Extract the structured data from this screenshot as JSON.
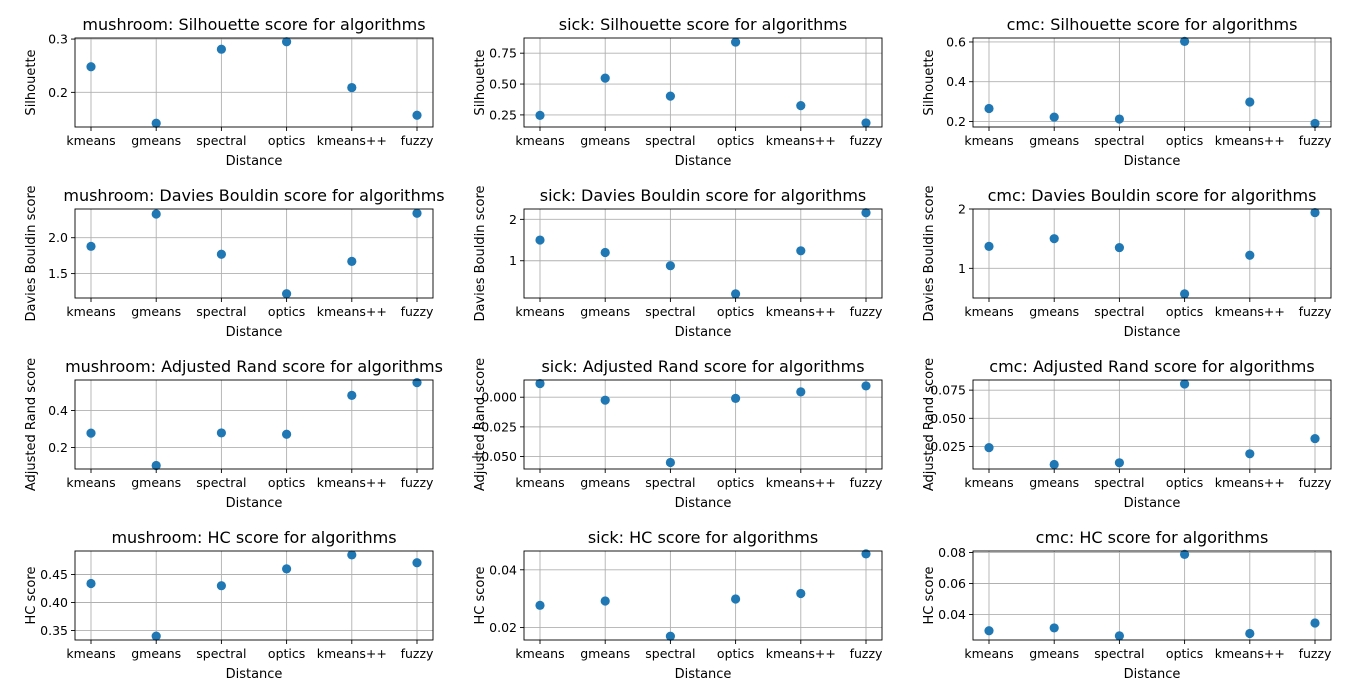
{
  "figure": {
    "background": "#ffffff",
    "marker_color": "#1f77b4",
    "grid": true
  },
  "chart_data": [
    {
      "type": "scatter",
      "title": "mushroom: Silhouette score for algorithms",
      "xlabel": "Distance",
      "ylabel": "Silhouette",
      "categories": [
        "kmeans",
        "gmeans",
        "spectral",
        "optics",
        "kmeans++",
        "fuzzy"
      ],
      "values": [
        0.248,
        0.142,
        0.281,
        0.295,
        0.209,
        0.157
      ],
      "ylim": [
        0.135,
        0.302
      ],
      "yticks": [
        0.2,
        0.3
      ],
      "ytick_labels": [
        "0.2",
        "0.3"
      ]
    },
    {
      "type": "scatter",
      "title": "sick: Silhouette score for algorithms",
      "xlabel": "Distance",
      "ylabel": "Silhouette",
      "categories": [
        "kmeans",
        "gmeans",
        "spectral",
        "optics",
        "kmeans++",
        "fuzzy"
      ],
      "values": [
        0.246,
        0.548,
        0.402,
        0.84,
        0.325,
        0.185
      ],
      "ylim": [
        0.152,
        0.873
      ],
      "yticks": [
        0.25,
        0.5,
        0.75
      ],
      "ytick_labels": [
        "0.25",
        "0.50",
        "0.75"
      ]
    },
    {
      "type": "scatter",
      "title": "cmc: Silhouette score for algorithms",
      "xlabel": "Distance",
      "ylabel": "Silhouette",
      "categories": [
        "kmeans",
        "gmeans",
        "spectral",
        "optics",
        "kmeans++",
        "fuzzy"
      ],
      "values": [
        0.265,
        0.222,
        0.212,
        0.603,
        0.298,
        0.19
      ],
      "ylim": [
        0.172,
        0.62
      ],
      "yticks": [
        0.2,
        0.4,
        0.6
      ],
      "ytick_labels": [
        "0.2",
        "0.4",
        "0.6"
      ]
    },
    {
      "type": "scatter",
      "title": "mushroom: Davies Bouldin score for algorithms",
      "xlabel": "Distance",
      "ylabel": "Davies Bouldin score",
      "categories": [
        "kmeans",
        "gmeans",
        "spectral",
        "optics",
        "kmeans++",
        "fuzzy"
      ],
      "values": [
        1.88,
        2.33,
        1.77,
        1.22,
        1.67,
        2.34
      ],
      "ylim": [
        1.16,
        2.4
      ],
      "yticks": [
        1.5,
        2.0
      ],
      "ytick_labels": [
        "1.5",
        "2.0"
      ]
    },
    {
      "type": "scatter",
      "title": "sick: Davies Bouldin score for algorithms",
      "xlabel": "Distance",
      "ylabel": "Davies Bouldin score",
      "categories": [
        "kmeans",
        "gmeans",
        "spectral",
        "optics",
        "kmeans++",
        "fuzzy"
      ],
      "values": [
        1.5,
        1.2,
        0.88,
        0.2,
        1.24,
        2.16
      ],
      "ylim": [
        0.1,
        2.25
      ],
      "yticks": [
        1,
        2
      ],
      "ytick_labels": [
        "1",
        "2"
      ]
    },
    {
      "type": "scatter",
      "title": "cmc: Davies Bouldin score for algorithms",
      "xlabel": "Distance",
      "ylabel": "Davies Bouldin score",
      "categories": [
        "kmeans",
        "gmeans",
        "spectral",
        "optics",
        "kmeans++",
        "fuzzy"
      ],
      "values": [
        1.37,
        1.5,
        1.35,
        0.57,
        1.22,
        1.94
      ],
      "ylim": [
        0.5,
        2.0
      ],
      "yticks": [
        1,
        2
      ],
      "ytick_labels": [
        "1",
        "2"
      ]
    },
    {
      "type": "scatter",
      "title": "mushroom: Adjusted Rand score for algorithms",
      "xlabel": "Distance",
      "ylabel": "Adjusted Rand score",
      "categories": [
        "kmeans",
        "gmeans",
        "spectral",
        "optics",
        "kmeans++",
        "fuzzy"
      ],
      "values": [
        0.278,
        0.103,
        0.279,
        0.272,
        0.482,
        0.551
      ],
      "ylim": [
        0.084,
        0.565
      ],
      "yticks": [
        0.2,
        0.4
      ],
      "ytick_labels": [
        "0.2",
        "0.4"
      ]
    },
    {
      "type": "scatter",
      "title": "sick: Adjusted Rand score for algorithms",
      "xlabel": "Distance",
      "ylabel": "Adjusted Rand score",
      "categories": [
        "kmeans",
        "gmeans",
        "spectral",
        "optics",
        "kmeans++",
        "fuzzy"
      ],
      "values": [
        0.0115,
        -0.0025,
        -0.055,
        -0.001,
        0.0045,
        0.0095
      ],
      "ylim": [
        -0.0605,
        0.0145
      ],
      "yticks": [
        -0.05,
        -0.025,
        0.0
      ],
      "ytick_labels": [
        "−0.050",
        "−0.025",
        "0.000"
      ]
    },
    {
      "type": "scatter",
      "title": "cmc: Adjusted Rand score for algorithms",
      "xlabel": "Distance",
      "ylabel": "Adjusted Rand score",
      "categories": [
        "kmeans",
        "gmeans",
        "spectral",
        "optics",
        "kmeans++",
        "fuzzy"
      ],
      "values": [
        0.024,
        0.009,
        0.0105,
        0.0805,
        0.0185,
        0.032
      ],
      "ylim": [
        0.005,
        0.084
      ],
      "yticks": [
        0.025,
        0.05,
        0.075
      ],
      "ytick_labels": [
        "0.025",
        "0.050",
        "0.075"
      ]
    },
    {
      "type": "scatter",
      "title": "mushroom: HC score for algorithms",
      "xlabel": "Distance",
      "ylabel": "HC score",
      "categories": [
        "kmeans",
        "gmeans",
        "spectral",
        "optics",
        "kmeans++",
        "fuzzy"
      ],
      "values": [
        0.434,
        0.34,
        0.43,
        0.46,
        0.485,
        0.471
      ],
      "ylim": [
        0.333,
        0.492
      ],
      "yticks": [
        0.35,
        0.4,
        0.45
      ],
      "ytick_labels": [
        "0.35",
        "0.40",
        "0.45"
      ]
    },
    {
      "type": "scatter",
      "title": "sick: HC score for algorithms",
      "xlabel": "Distance",
      "ylabel": "HC score",
      "categories": [
        "kmeans",
        "gmeans",
        "spectral",
        "optics",
        "kmeans++",
        "fuzzy"
      ],
      "values": [
        0.0277,
        0.0292,
        0.017,
        0.0299,
        0.0318,
        0.0455
      ],
      "ylim": [
        0.0157,
        0.0465
      ],
      "yticks": [
        0.02,
        0.04
      ],
      "ytick_labels": [
        "0.02",
        "0.04"
      ]
    },
    {
      "type": "scatter",
      "title": "cmc: HC score for algorithms",
      "xlabel": "Distance",
      "ylabel": "HC score",
      "categories": [
        "kmeans",
        "gmeans",
        "spectral",
        "optics",
        "kmeans++",
        "fuzzy"
      ],
      "values": [
        0.0295,
        0.0313,
        0.0262,
        0.0788,
        0.0277,
        0.0345
      ],
      "ylim": [
        0.0235,
        0.081
      ],
      "yticks": [
        0.04,
        0.06,
        0.08
      ],
      "ytick_labels": [
        "0.04",
        "0.06",
        "0.08"
      ]
    }
  ]
}
